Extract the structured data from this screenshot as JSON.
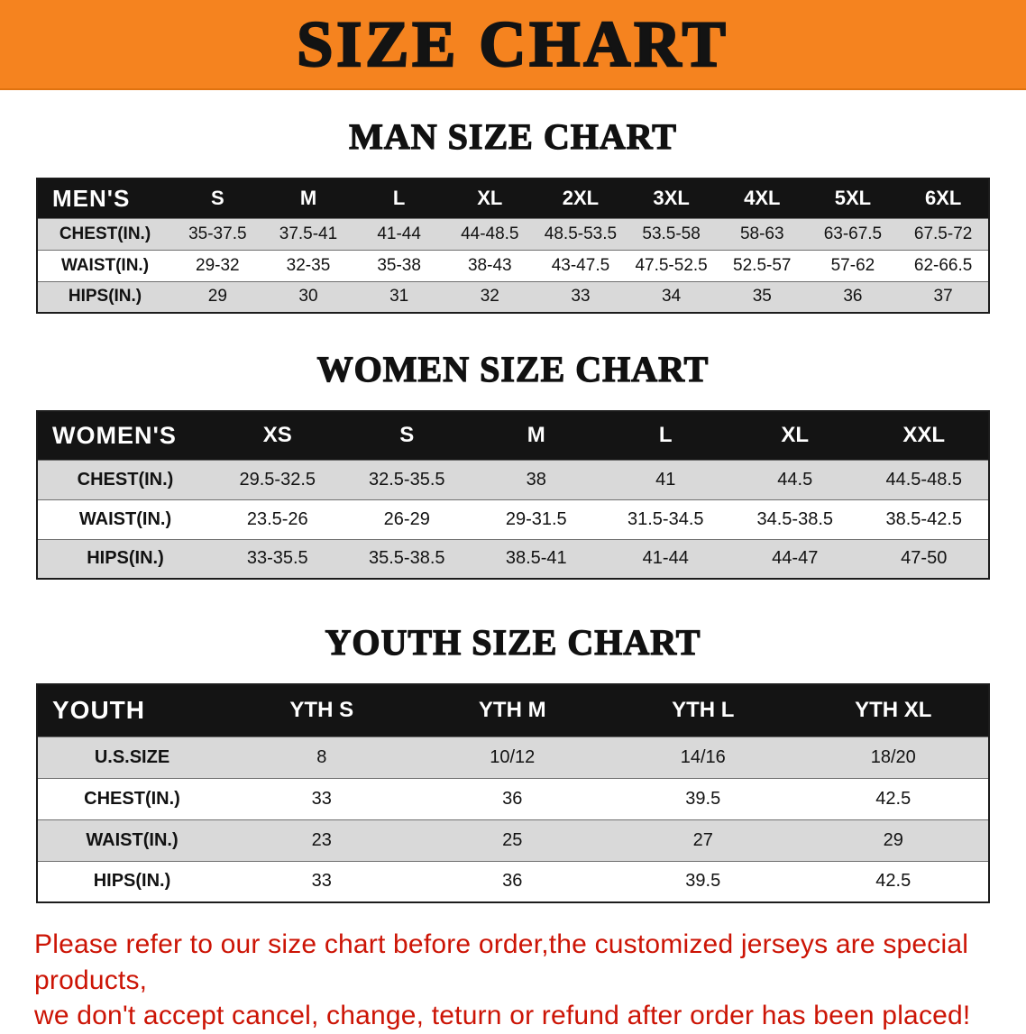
{
  "banner": {
    "title": "SIZE CHART"
  },
  "sections": [
    {
      "heading": "MAN SIZE CHART",
      "table": {
        "header": [
          "MEN'S",
          "S",
          "M",
          "L",
          "XL",
          "2XL",
          "3XL",
          "4XL",
          "5XL",
          "6XL"
        ],
        "rows": [
          [
            "CHEST(IN.)",
            "35-37.5",
            "37.5-41",
            "41-44",
            "44-48.5",
            "48.5-53.5",
            "53.5-58",
            "58-63",
            "63-67.5",
            "67.5-72"
          ],
          [
            "WAIST(IN.)",
            "29-32",
            "32-35",
            "35-38",
            "38-43",
            "43-47.5",
            "47.5-52.5",
            "52.5-57",
            "57-62",
            "62-66.5"
          ],
          [
            "HIPS(IN.)",
            "29",
            "30",
            "31",
            "32",
            "33",
            "34",
            "35",
            "36",
            "37"
          ]
        ]
      }
    },
    {
      "heading": "WOMEN SIZE CHART",
      "table": {
        "header": [
          "WOMEN'S",
          "XS",
          "S",
          "M",
          "L",
          "XL",
          "XXL"
        ],
        "rows": [
          [
            "CHEST(IN.)",
            "29.5-32.5",
            "32.5-35.5",
            "38",
            "41",
            "44.5",
            "44.5-48.5"
          ],
          [
            "WAIST(IN.)",
            "23.5-26",
            "26-29",
            "29-31.5",
            "31.5-34.5",
            "34.5-38.5",
            "38.5-42.5"
          ],
          [
            "HIPS(IN.)",
            "33-35.5",
            "35.5-38.5",
            "38.5-41",
            "41-44",
            "44-47",
            "47-50"
          ]
        ]
      }
    },
    {
      "heading": "YOUTH SIZE CHART",
      "table": {
        "header": [
          "YOUTH",
          "YTH S",
          "YTH M",
          "YTH L",
          "YTH XL"
        ],
        "rows": [
          [
            "U.S.SIZE",
            "8",
            "10/12",
            "14/16",
            "18/20"
          ],
          [
            "CHEST(IN.)",
            "33",
            "36",
            "39.5",
            "42.5"
          ],
          [
            "WAIST(IN.)",
            "23",
            "25",
            "27",
            "29"
          ],
          [
            "HIPS(IN.)",
            "33",
            "36",
            "39.5",
            "42.5"
          ]
        ]
      }
    }
  ],
  "footer": {
    "line1": "Please refer to our size chart before order,the customized jerseys are special products,",
    "line2": "we don't accept cancel, change, teturn or refund after order has been placed!"
  },
  "colors": {
    "banner_bg": "#f5831f",
    "table_header_bg": "#141414",
    "row_alt_bg": "#d9d9d9",
    "footer_text": "#cc1405"
  }
}
